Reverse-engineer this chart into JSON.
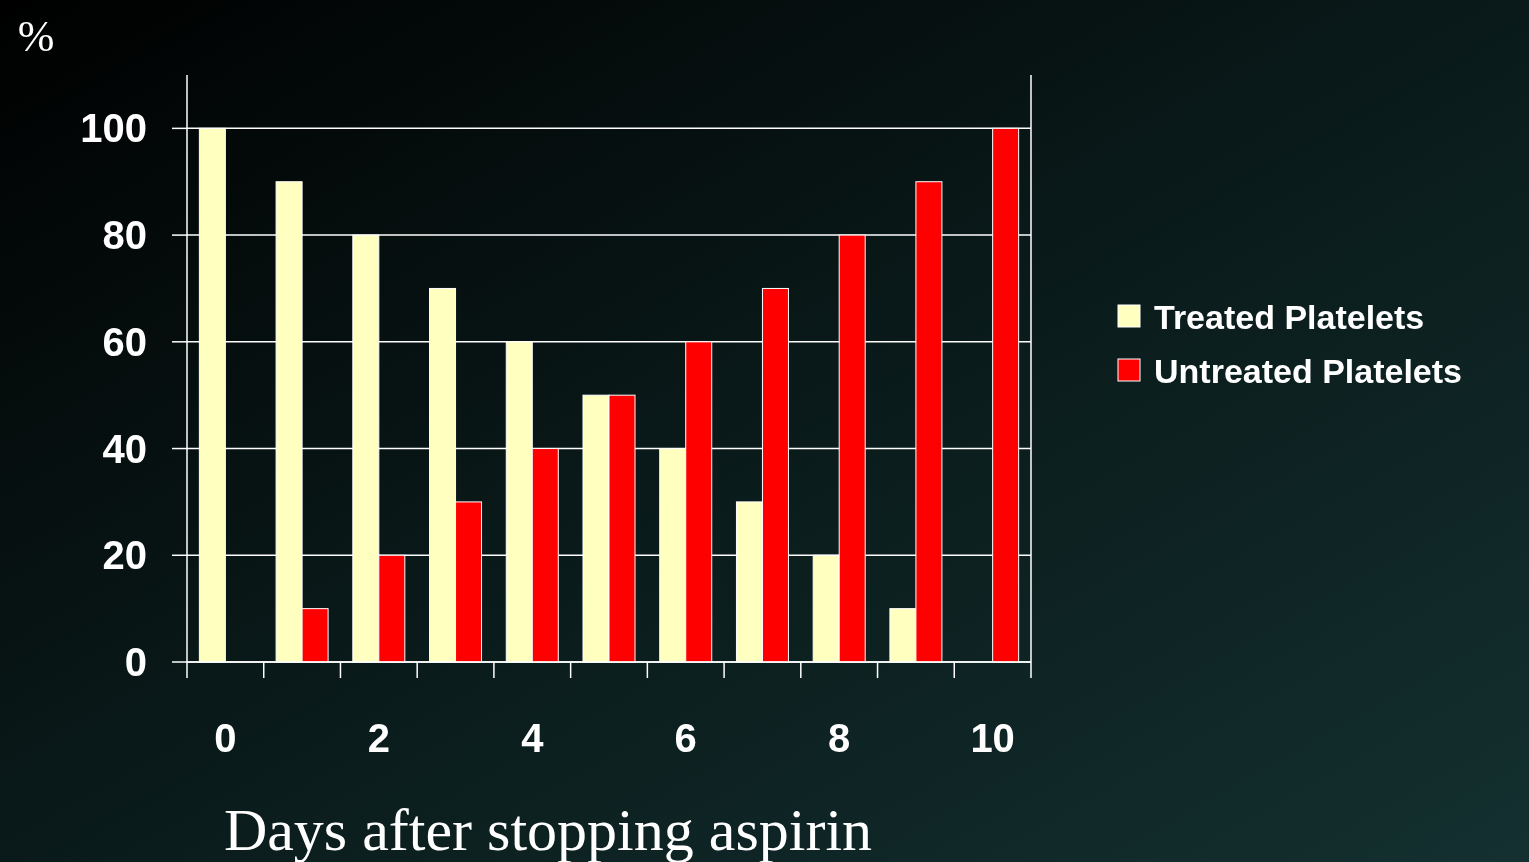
{
  "chart_data": {
    "type": "bar",
    "xlabel": "Days after stopping aspirin",
    "ylabel": "%",
    "categories": [
      "0",
      null,
      "2",
      null,
      "4",
      null,
      "6",
      null,
      "8",
      null,
      "10"
    ],
    "series": [
      {
        "name": "Treated Platelets",
        "color": "#ffffc0",
        "values": [
          100,
          90,
          80,
          70,
          60,
          50,
          40,
          30,
          20,
          10,
          0
        ]
      },
      {
        "name": "Untreated Platelets",
        "color": "#ff0000",
        "values": [
          0,
          10,
          20,
          30,
          40,
          50,
          60,
          70,
          80,
          90,
          100
        ]
      }
    ],
    "ylim": [
      0,
      110
    ],
    "yticks": [
      0,
      20,
      40,
      60,
      80,
      100
    ],
    "grid": "y",
    "legend": "right"
  }
}
